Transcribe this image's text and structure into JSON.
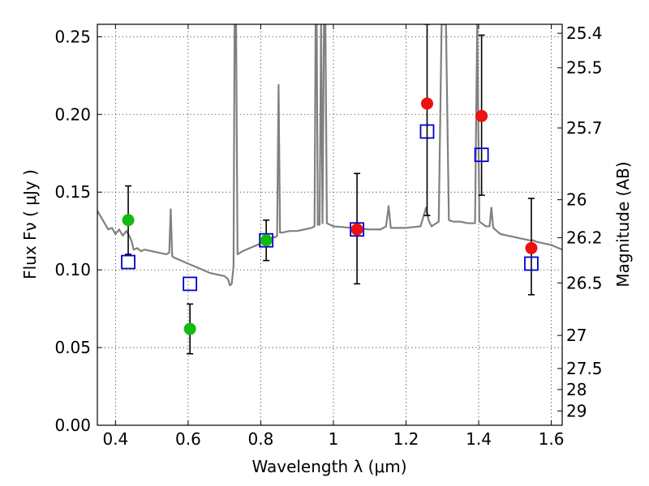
{
  "chart_data": {
    "type": "scatter",
    "title": "",
    "xlabel": "Wavelength  λ (μm)",
    "ylabel": "Flux  Fν  ( μJy )",
    "y2label": "Magnitude (AB)",
    "xlim": [
      0.35,
      1.63
    ],
    "ylim": [
      0.0,
      0.258
    ],
    "grid": true,
    "xticks": [
      0.4,
      0.6,
      0.8,
      1.0,
      1.2,
      1.4,
      1.6
    ],
    "xtick_labels": [
      "0.4",
      "0.6",
      "0.8",
      "1",
      "1.2",
      "1.4",
      "1.6"
    ],
    "yticks": [
      0.0,
      0.05,
      0.1,
      0.15,
      0.2,
      0.25
    ],
    "ytick_labels": [
      "0.00",
      "0.05",
      "0.10",
      "0.15",
      "0.20",
      "0.25"
    ],
    "y2ticks": [
      {
        "label": "25.4",
        "flux": 0.2522
      },
      {
        "label": "25.5",
        "flux": 0.23
      },
      {
        "label": "25.7",
        "flux": 0.1913
      },
      {
        "label": "26",
        "flux": 0.1451
      },
      {
        "label": "26.2",
        "flux": 0.1207
      },
      {
        "label": "26.5",
        "flux": 0.0916
      },
      {
        "label": "27",
        "flux": 0.0578
      },
      {
        "label": "27.5",
        "flux": 0.0365
      },
      {
        "label": "28",
        "flux": 0.023
      },
      {
        "label": "29",
        "flux": 0.0092
      }
    ],
    "colors": {
      "spectrum": "#808080",
      "red": "#ee1111",
      "green": "#11bb11",
      "model": "#0000cc",
      "error": "#000000"
    },
    "series": [
      {
        "kind": "line",
        "points": [
          [
            0.35,
            0.138
          ],
          [
            0.36,
            0.134
          ],
          [
            0.37,
            0.13
          ],
          [
            0.38,
            0.126
          ],
          [
            0.39,
            0.127
          ],
          [
            0.4,
            0.123
          ],
          [
            0.41,
            0.126
          ],
          [
            0.42,
            0.122
          ],
          [
            0.43,
            0.125
          ],
          [
            0.44,
            0.121
          ],
          [
            0.445,
            0.118
          ],
          [
            0.45,
            0.113
          ],
          [
            0.46,
            0.114
          ],
          [
            0.47,
            0.112
          ],
          [
            0.48,
            0.113
          ],
          [
            0.5,
            0.112
          ],
          [
            0.52,
            0.111
          ],
          [
            0.54,
            0.11
          ],
          [
            0.548,
            0.111
          ],
          [
            0.552,
            0.139
          ],
          [
            0.556,
            0.109
          ],
          [
            0.56,
            0.108
          ],
          [
            0.58,
            0.106
          ],
          [
            0.6,
            0.104
          ],
          [
            0.62,
            0.102
          ],
          [
            0.64,
            0.1
          ],
          [
            0.66,
            0.098
          ],
          [
            0.68,
            0.097
          ],
          [
            0.7,
            0.096
          ],
          [
            0.71,
            0.094
          ],
          [
            0.715,
            0.09
          ],
          [
            0.72,
            0.091
          ],
          [
            0.725,
            0.102
          ],
          [
            0.728,
            0.258
          ],
          [
            0.732,
            0.258
          ],
          [
            0.736,
            0.11
          ],
          [
            0.75,
            0.112
          ],
          [
            0.77,
            0.114
          ],
          [
            0.79,
            0.116
          ],
          [
            0.8,
            0.117
          ],
          [
            0.81,
            0.12
          ],
          [
            0.82,
            0.119
          ],
          [
            0.835,
            0.121
          ],
          [
            0.84,
            0.121
          ],
          [
            0.845,
            0.122
          ],
          [
            0.849,
            0.219
          ],
          [
            0.853,
            0.124
          ],
          [
            0.86,
            0.124
          ],
          [
            0.88,
            0.125
          ],
          [
            0.9,
            0.125
          ],
          [
            0.92,
            0.126
          ],
          [
            0.94,
            0.127
          ],
          [
            0.948,
            0.128
          ],
          [
            0.951,
            0.258
          ],
          [
            0.954,
            0.258
          ],
          [
            0.957,
            0.129
          ],
          [
            0.962,
            0.129
          ],
          [
            0.966,
            0.258
          ],
          [
            0.97,
            0.13
          ],
          [
            0.974,
            0.258
          ],
          [
            0.978,
            0.258
          ],
          [
            0.982,
            0.13
          ],
          [
            1.0,
            0.128
          ],
          [
            1.05,
            0.127
          ],
          [
            1.1,
            0.126
          ],
          [
            1.13,
            0.126
          ],
          [
            1.145,
            0.128
          ],
          [
            1.152,
            0.141
          ],
          [
            1.158,
            0.127
          ],
          [
            1.2,
            0.127
          ],
          [
            1.24,
            0.128
          ],
          [
            1.255,
            0.14
          ],
          [
            1.262,
            0.132
          ],
          [
            1.27,
            0.128
          ],
          [
            1.29,
            0.131
          ],
          [
            1.298,
            0.258
          ],
          [
            1.31,
            0.258
          ],
          [
            1.318,
            0.132
          ],
          [
            1.33,
            0.131
          ],
          [
            1.35,
            0.131
          ],
          [
            1.37,
            0.13
          ],
          [
            1.39,
            0.13
          ],
          [
            1.396,
            0.258
          ],
          [
            1.402,
            0.131
          ],
          [
            1.42,
            0.128
          ],
          [
            1.43,
            0.128
          ],
          [
            1.435,
            0.14
          ],
          [
            1.44,
            0.127
          ],
          [
            1.46,
            0.123
          ],
          [
            1.48,
            0.122
          ],
          [
            1.5,
            0.121
          ],
          [
            1.52,
            0.12
          ],
          [
            1.54,
            0.119
          ],
          [
            1.55,
            0.119
          ],
          [
            1.56,
            0.118
          ],
          [
            1.58,
            0.117
          ],
          [
            1.6,
            0.116
          ],
          [
            1.61,
            0.115
          ],
          [
            1.63,
            0.113
          ]
        ]
      },
      {
        "kind": "errorbar-points",
        "points": [
          {
            "x": 0.435,
            "y": 0.132,
            "yerr": [
              0.11,
              0.154
            ],
            "color": "green"
          },
          {
            "x": 0.605,
            "y": 0.062,
            "yerr": [
              0.046,
              0.078
            ],
            "color": "green"
          },
          {
            "x": 0.815,
            "y": 0.119,
            "yerr": [
              0.106,
              0.132
            ],
            "color": "green"
          },
          {
            "x": 1.065,
            "y": 0.126,
            "yerr": [
              0.091,
              0.162
            ],
            "color": "red"
          },
          {
            "x": 1.258,
            "y": 0.207,
            "yerr": [
              0.135,
              0.258
            ],
            "color": "red"
          },
          {
            "x": 1.408,
            "y": 0.199,
            "yerr": [
              0.148,
              0.251
            ],
            "color": "red"
          },
          {
            "x": 1.545,
            "y": 0.114,
            "yerr": [
              0.084,
              0.146
            ],
            "color": "red"
          }
        ]
      },
      {
        "kind": "model-squares",
        "points": [
          {
            "x": 0.435,
            "y": 0.105
          },
          {
            "x": 0.605,
            "y": 0.091
          },
          {
            "x": 0.815,
            "y": 0.119
          },
          {
            "x": 1.065,
            "y": 0.126
          },
          {
            "x": 1.258,
            "y": 0.189
          },
          {
            "x": 1.408,
            "y": 0.174
          },
          {
            "x": 1.545,
            "y": 0.104
          }
        ]
      }
    ]
  }
}
